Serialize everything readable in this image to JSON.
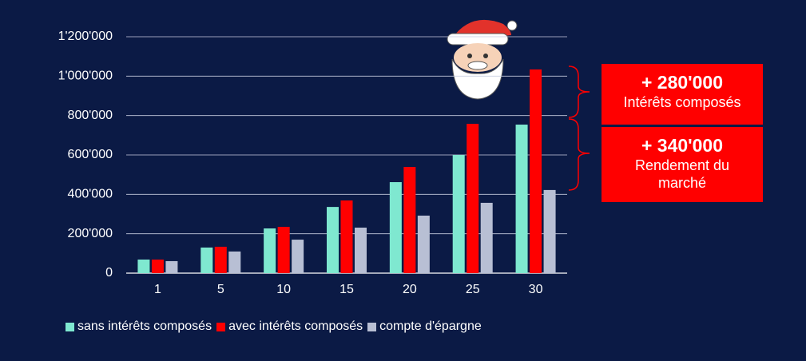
{
  "chart_data": {
    "type": "bar",
    "categories": [
      "1",
      "5",
      "10",
      "15",
      "20",
      "25",
      "30"
    ],
    "series": [
      {
        "name": "sans intérêts composés",
        "color": "#7fe8d0",
        "values": [
          69000,
          130000,
          227000,
          336000,
          462000,
          600000,
          754000
        ]
      },
      {
        "name": "avec intérêts composés",
        "color": "#ff0000",
        "values": [
          69000,
          134000,
          235000,
          369000,
          539000,
          758000,
          1034000
        ]
      },
      {
        "name": "compte d'épargne",
        "color": "#b8bfd4",
        "values": [
          61000,
          110000,
          170000,
          231000,
          292000,
          357000,
          422000
        ]
      }
    ],
    "ylim": [
      0,
      1200000
    ],
    "yticks": [
      0,
      {
        "value": 200000,
        "label": "200'000"
      },
      {
        "value": 400000,
        "label": "400'000"
      },
      {
        "value": 600000,
        "label": "600'000"
      },
      {
        "value": 800000,
        "label": "800'000"
      },
      {
        "value": 1000000,
        "label": "1'000'000"
      },
      {
        "value": 1200000,
        "label": "1'200'000"
      }
    ],
    "grid": true,
    "annotations": [
      {
        "value": "+ 280'000",
        "text": "Intérêts composés"
      },
      {
        "value": "+ 340'000",
        "text": "Rendement du marché"
      }
    ]
  }
}
